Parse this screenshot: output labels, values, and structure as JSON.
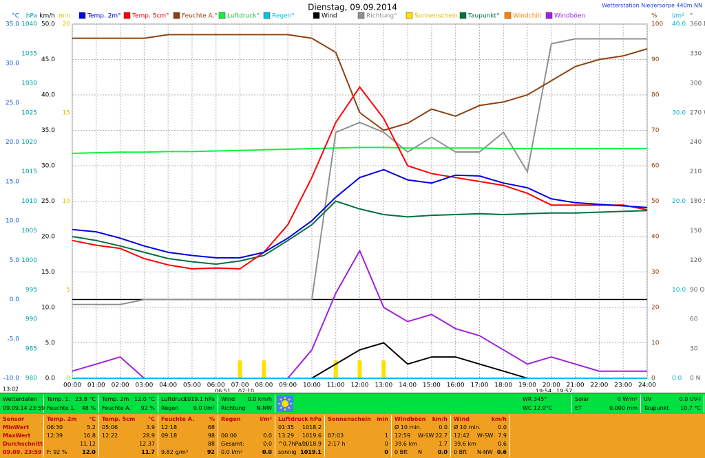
{
  "chart_data": {
    "type": "line",
    "title": "Dienstag, 09.09.2014",
    "subtitle": "Wetterstation Niedersorpe 440m NN",
    "grid": true,
    "x": [
      0,
      1,
      2,
      3,
      4,
      5,
      6,
      7,
      8,
      9,
      10,
      11,
      12,
      13,
      14,
      15,
      16,
      17,
      18,
      19,
      20,
      21,
      22,
      23,
      24
    ],
    "xlim": [
      0,
      24
    ],
    "xticks": [
      {
        "value": 0,
        "label": "00:00"
      },
      {
        "value": 1,
        "label": "01:00"
      },
      {
        "value": 2,
        "label": "02:00"
      },
      {
        "value": 3,
        "label": "03:00"
      },
      {
        "value": 4,
        "label": "04:00"
      },
      {
        "value": 5,
        "label": "05:00"
      },
      {
        "value": 6,
        "label": "06:00"
      },
      {
        "value": 7,
        "label": "07:00"
      },
      {
        "value": 8,
        "label": "08:00"
      },
      {
        "value": 9,
        "label": "09:00"
      },
      {
        "value": 10,
        "label": "10:00"
      },
      {
        "value": 11,
        "label": "11:00"
      },
      {
        "value": 12,
        "label": "12:00"
      },
      {
        "value": 13,
        "label": "13:00"
      },
      {
        "value": 14,
        "label": "14:00"
      },
      {
        "value": 15,
        "label": "15:00"
      },
      {
        "value": 16,
        "label": "16:00"
      },
      {
        "value": 17,
        "label": "17:00"
      },
      {
        "value": 18,
        "label": "18:00"
      },
      {
        "value": 19,
        "label": "19:00"
      },
      {
        "value": 20,
        "label": "20:00"
      },
      {
        "value": 21,
        "label": "21:00"
      },
      {
        "value": 22,
        "label": "22:00"
      },
      {
        "value": 23,
        "label": "23:00"
      },
      {
        "value": 24,
        "label": "24:00"
      }
    ],
    "axes": [
      {
        "unit": "°C",
        "side": "left",
        "color": "#1060d0",
        "lim": [
          -10,
          35
        ],
        "ticks": [
          {
            "value": 35,
            "label": "35.0"
          },
          {
            "value": 30,
            "label": "30.0"
          },
          {
            "value": 25,
            "label": "25.0"
          },
          {
            "value": 20,
            "label": "20.0"
          },
          {
            "value": 15,
            "label": "15.0"
          },
          {
            "value": 10,
            "label": "10.0"
          },
          {
            "value": 5,
            "label": "5.0"
          },
          {
            "value": 0,
            "label": "0.0"
          },
          {
            "value": -5,
            "label": "-5.0"
          },
          {
            "value": -10,
            "label": "-10.0"
          }
        ]
      },
      {
        "unit": "hPa",
        "side": "left",
        "color": "#00a0a0",
        "lim": [
          980,
          1040
        ],
        "ticks": [
          1040,
          1035,
          1030,
          1025,
          1020,
          1015,
          1010,
          1005,
          1000,
          995,
          990,
          985,
          980
        ]
      },
      {
        "unit": "km/h",
        "side": "left",
        "color": "#000000",
        "lim": [
          0,
          50
        ],
        "ticks": [
          {
            "value": 50,
            "label": "50.0"
          },
          {
            "value": 45,
            "label": "45.0"
          },
          {
            "value": 40,
            "label": "40.0"
          },
          {
            "value": 35,
            "label": "35.0"
          },
          {
            "value": 30,
            "label": "30.0"
          },
          {
            "value": 25,
            "label": "25.0"
          },
          {
            "value": 20,
            "label": "20.0"
          },
          {
            "value": 15,
            "label": "15.0"
          },
          {
            "value": 10,
            "label": "10.0"
          },
          {
            "value": 5,
            "label": "5.0"
          },
          {
            "value": 0,
            "label": "0.0"
          }
        ]
      },
      {
        "unit": "min",
        "side": "left",
        "color": "#e0c000",
        "lim": [
          0,
          20
        ],
        "ticks": [
          20,
          15,
          10,
          5,
          0
        ]
      },
      {
        "unit": "%",
        "side": "right",
        "color": "#904010",
        "lim": [
          0,
          100
        ],
        "ticks": [
          100,
          90,
          80,
          70,
          60,
          50,
          40,
          30,
          20,
          10,
          0
        ]
      },
      {
        "unit": "l/m²",
        "side": "right",
        "color": "#00b0d0",
        "lim": [
          0,
          40
        ],
        "ticks": [
          {
            "value": 40,
            "label": "40.0"
          },
          {
            "value": 30,
            "label": "30.0"
          },
          {
            "value": 20,
            "label": "20.0"
          },
          {
            "value": 10,
            "label": "10.0"
          },
          {
            "value": 0,
            "label": "0.0"
          }
        ]
      },
      {
        "unit": "°",
        "side": "right",
        "color": "#606060",
        "lim": [
          0,
          360
        ],
        "ticks": [
          {
            "value": 360,
            "label": "360 N"
          },
          330,
          300,
          {
            "value": 270,
            "label": "270 W"
          },
          240,
          210,
          {
            "value": 180,
            "label": "180 S"
          },
          150,
          120,
          {
            "value": 90,
            "label": "90 O"
          },
          60,
          30,
          {
            "value": 0,
            "label": "0 N"
          }
        ]
      }
    ],
    "series": [
      {
        "name": "Temp. 2m°",
        "color": "#0000e0",
        "axis": 0,
        "style": "line",
        "values": [
          8.9,
          8.6,
          7.8,
          6.8,
          6.0,
          5.6,
          5.3,
          5.3,
          6.0,
          7.8,
          10.0,
          13.0,
          15.5,
          16.5,
          15.2,
          14.8,
          15.8,
          15.7,
          14.8,
          14.2,
          12.8,
          12.3,
          12.1,
          11.9,
          11.7
        ]
      },
      {
        "name": "Temp. 5cm°",
        "color": "#ff0000",
        "axis": 0,
        "style": "line",
        "values": [
          7.5,
          6.9,
          6.5,
          5.2,
          4.4,
          3.9,
          4.0,
          3.9,
          6.0,
          9.5,
          15.5,
          22.5,
          27.0,
          23.0,
          17.0,
          16.0,
          15.5,
          15.0,
          14.5,
          13.5,
          12.0,
          12.0,
          12.0,
          12.0,
          11.4
        ]
      },
      {
        "name": "Feuchte A.°",
        "color": "#904010",
        "axis": 4,
        "style": "line",
        "values": [
          96,
          96,
          96,
          96,
          97,
          97,
          97,
          97,
          97,
          97,
          96,
          92,
          75,
          70,
          72,
          76,
          74,
          77,
          78,
          80,
          84,
          88,
          90,
          91,
          93
        ]
      },
      {
        "name": "Luftdruck°",
        "color": "#10f040",
        "axis": 1,
        "style": "line",
        "values": [
          1018.1,
          1018.2,
          1018.3,
          1018.3,
          1018.4,
          1018.4,
          1018.5,
          1018.6,
          1018.7,
          1018.8,
          1018.9,
          1019.0,
          1019.1,
          1019.1,
          1019.0,
          1019.0,
          1019.0,
          1019.0,
          1018.9,
          1018.9,
          1018.9,
          1018.9,
          1018.9,
          1018.9,
          1018.9
        ]
      },
      {
        "name": "Regen°",
        "color": "#00c0e0",
        "axis": 5,
        "style": "line",
        "values": [
          0,
          0,
          0,
          0,
          0,
          0,
          0,
          0,
          0,
          0,
          0,
          0,
          0,
          0,
          0,
          0,
          0,
          0,
          0,
          0,
          0,
          0,
          0,
          0,
          0
        ]
      },
      {
        "name": "Wind",
        "color": "#000000",
        "axis": 2,
        "style": "line",
        "values": [
          0,
          0,
          0,
          0,
          0,
          0,
          0,
          0,
          0,
          0,
          0,
          2,
          4,
          5,
          2,
          3,
          3,
          2,
          1,
          0,
          0,
          0,
          0,
          0,
          0
        ]
      },
      {
        "name": "Richtung°",
        "color": "#909090",
        "axis": 6,
        "style": "line",
        "values": [
          75,
          75,
          75,
          80,
          80,
          80,
          80,
          80,
          80,
          80,
          80,
          250,
          260,
          250,
          230,
          245,
          230,
          230,
          250,
          210,
          340,
          345,
          345,
          345,
          345
        ]
      },
      {
        "name": "Sonnenschein",
        "color": "#ffe000",
        "axis": 3,
        "style": "bar",
        "values": [
          0,
          0,
          0,
          0,
          0,
          0,
          0,
          1,
          1,
          0,
          0,
          1,
          1,
          1,
          0,
          0,
          0,
          0,
          0,
          0,
          0,
          0,
          0,
          0,
          0
        ]
      },
      {
        "name": "Taupunkt°",
        "color": "#007040",
        "axis": 0,
        "style": "line",
        "values": [
          8.0,
          7.5,
          6.8,
          6.0,
          5.2,
          4.8,
          4.5,
          4.9,
          5.6,
          7.5,
          9.5,
          12.5,
          11.5,
          10.8,
          10.5,
          10.7,
          10.8,
          10.9,
          10.8,
          10.9,
          11.0,
          11.0,
          11.1,
          11.2,
          11.3
        ]
      },
      {
        "name": "Windchill",
        "color": "#ff8000",
        "axis": 0,
        "style": "line",
        "values": [
          null,
          null,
          null,
          null,
          null,
          null,
          null,
          null,
          null,
          null,
          null,
          null,
          null,
          null,
          null,
          null,
          null,
          null,
          null,
          null,
          null,
          null,
          null,
          null,
          null
        ]
      },
      {
        "name": "Windböen",
        "color": "#a020e0",
        "axis": 2,
        "style": "line",
        "values": [
          1,
          2,
          3,
          0,
          0,
          0,
          0,
          0,
          0,
          0,
          4,
          12,
          18,
          10,
          8,
          9,
          7,
          6,
          4,
          2,
          3,
          2,
          1,
          1,
          1
        ]
      }
    ],
    "annotations": [
      "13:02",
      "06:51",
      "07:10",
      "19:54",
      "19:57"
    ]
  },
  "status_bar": {
    "columns": [
      [
        [
          "Wetterdaten"
        ],
        [
          "09.09.14 23:59"
        ]
      ],
      [
        [
          "Temp. 1.",
          "23.8 °C"
        ],
        [
          "Feuchte 1.",
          "48 %"
        ]
      ],
      [
        [
          "Temp. 2m",
          "12.0 °C"
        ],
        [
          "Feuchte A.",
          "92 %"
        ]
      ],
      [
        [
          "Luftdruck",
          "1019.1 hPa"
        ],
        [
          "Regen",
          "0.0 l/m²"
        ]
      ],
      [
        [
          "Wind",
          "0.0 km/h"
        ],
        [
          "Richtung",
          "N-NW"
        ]
      ],
      [
        [
          "WR 345°"
        ],
        [
          "WC 12.0°C"
        ]
      ],
      [
        [
          "Solar",
          "0 W/m²"
        ],
        [
          "ET",
          "0.000 mm"
        ]
      ],
      [
        [
          "UV",
          "0.0 UV-I"
        ],
        [
          "Taupunkt",
          "10.7 °C"
        ]
      ]
    ]
  },
  "stats_table": {
    "header": [
      [
        "Sensor"
      ],
      [
        "Temp. 2m",
        "°C"
      ],
      [
        "Temp. 5cm",
        "°C"
      ],
      [
        "Feuchte A.",
        "%"
      ],
      [
        "Regen",
        "l/m²"
      ],
      [
        "Luftdruck",
        "hPa"
      ],
      [
        "Sonnenschein",
        "min"
      ],
      [
        "Windböen",
        "km/h"
      ],
      [
        "Wind",
        "km/h"
      ]
    ],
    "rows": [
      [
        [
          "MinWert"
        ],
        [
          "06:30",
          "5.2"
        ],
        [
          "05:06",
          "3.9"
        ],
        [
          "12:18",
          "68"
        ],
        [],
        [
          "01:35",
          "1018.2"
        ],
        [],
        [
          "Ø 10 min.",
          "0.0"
        ],
        [
          "Ø 10 min.",
          "0.0"
        ]
      ],
      [
        [
          "MaxWert"
        ],
        [
          "12:39",
          "16.8"
        ],
        [
          "12:22",
          "28.9"
        ],
        [
          "09:18",
          "98"
        ],
        [
          "00:00",
          "0.0"
        ],
        [
          "13:29",
          "1019.6"
        ],
        [
          "07:03",
          "1"
        ],
        [
          "12:59",
          "W-SW",
          "22.7"
        ],
        [
          "12:42",
          "W-SW",
          "7.9"
        ]
      ],
      [
        [
          "Durchschnitt"
        ],
        [
          "11.12"
        ],
        [
          "12.37"
        ],
        [
          "88"
        ],
        [
          "Gesamt:",
          "0.0"
        ],
        [
          "^0.7hPa/h",
          "1018.9"
        ],
        [
          "2:17 h",
          "0"
        ],
        [
          "39.6 km",
          "1.7"
        ],
        [
          "39.6 km",
          "0.6"
        ]
      ],
      [
        [
          "09.09. 23:59"
        ],
        [
          "F: 92 %",
          "12.0"
        ],
        [
          "11.7"
        ],
        [
          "9.82 g/m³",
          "92"
        ],
        [
          "0.0 l/m²",
          "0.0"
        ],
        [
          "sonnig",
          "1019.1"
        ],
        [
          "0"
        ],
        [
          "0 Bft",
          "N",
          "0.0"
        ],
        [
          "0 Bft",
          "N-NW",
          "0.6"
        ]
      ]
    ]
  }
}
